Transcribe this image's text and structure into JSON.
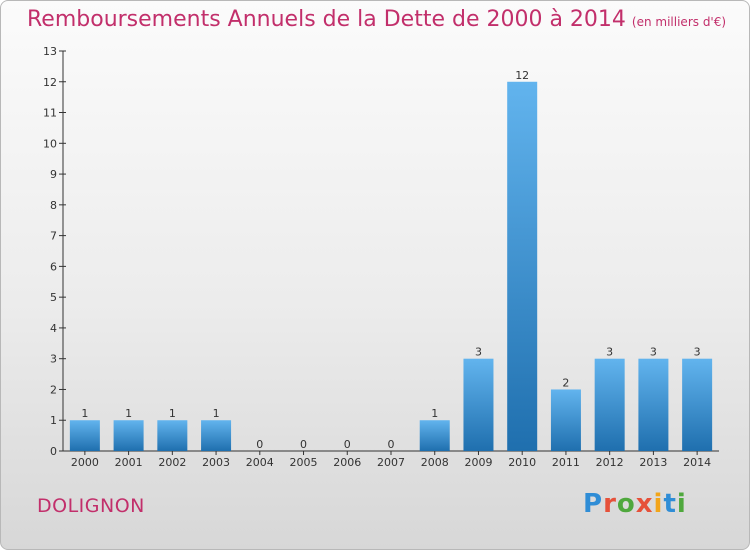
{
  "title": "Remboursements Annuels de la Dette de 2000 à 2014",
  "unit_note": "(en milliers d'€)",
  "commune": "DOLIGNON",
  "logo": "Proxiti",
  "colors": {
    "title": "#c22f6b",
    "bar_light": "#62b4ee",
    "bar_dark": "#1f6fae"
  },
  "chart_data": {
    "type": "bar",
    "title": "Remboursements Annuels de la Dette de 2000 à 2014",
    "categories": [
      "2000",
      "2001",
      "2002",
      "2003",
      "2004",
      "2005",
      "2006",
      "2007",
      "2008",
      "2009",
      "2010",
      "2011",
      "2012",
      "2013",
      "2014"
    ],
    "values": [
      1,
      1,
      1,
      1,
      0,
      0,
      0,
      0,
      1,
      3,
      12,
      2,
      3,
      3,
      3
    ],
    "ylim": [
      0,
      13
    ],
    "yticks": [
      0,
      1,
      2,
      3,
      4,
      5,
      6,
      7,
      8,
      9,
      10,
      11,
      12,
      13
    ],
    "grid": false,
    "xlabel": "",
    "ylabel": ""
  }
}
